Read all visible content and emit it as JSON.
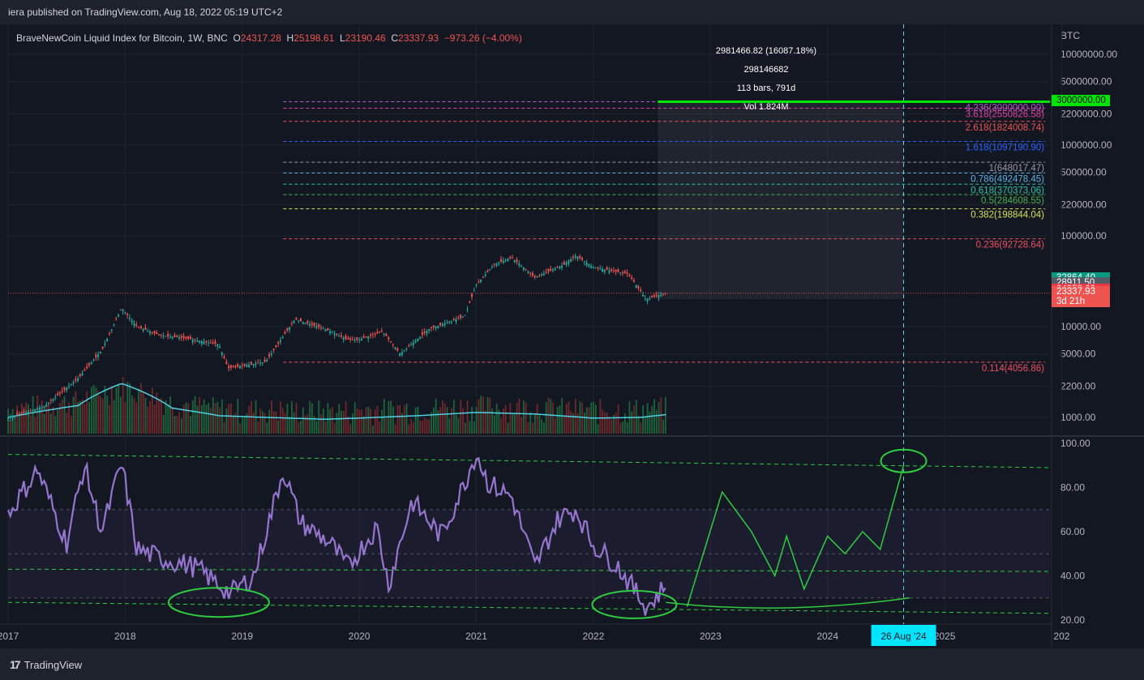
{
  "header": {
    "published": "iera published on TradingView.com, Aug 18, 2022 05:19 UTC+2"
  },
  "symbol": {
    "name": "BraveNewCoin Liquid Index for Bitcoin, 1W, BNC",
    "o_label": "O",
    "o": "24317.28",
    "h_label": "H",
    "h": "25198.61",
    "l_label": "L",
    "l": "23190.46",
    "c_label": "C",
    "c": "23337.93",
    "change": "−973.26 (−4.00%)"
  },
  "measure": {
    "line1": "2981466.82 (16087.18%) 298146682",
    "line2": "113 bars, 791d",
    "line3": "Vol 1.824M"
  },
  "axis": {
    "currency": "BTC",
    "price_ticks": [
      {
        "label": "10000000.00",
        "v": 10000000
      },
      {
        "label": "5000000.00",
        "v": 5000000
      },
      {
        "label": "2200000.00",
        "v": 2200000
      },
      {
        "label": "1000000.00",
        "v": 1000000
      },
      {
        "label": "500000.00",
        "v": 500000
      },
      {
        "label": "220000.00",
        "v": 220000
      },
      {
        "label": "100000.00",
        "v": 100000
      },
      {
        "label": "10000.00",
        "v": 10000
      },
      {
        "label": "5000.00",
        "v": 5000
      },
      {
        "label": "2200.00",
        "v": 2200
      },
      {
        "label": "1000.00",
        "v": 1000
      }
    ],
    "osc_ticks": [
      {
        "label": "100.00",
        "v": 100
      },
      {
        "label": "80.00",
        "v": 80
      },
      {
        "label": "60.00",
        "v": 60
      },
      {
        "label": "40.00",
        "v": 40
      },
      {
        "label": "20.00",
        "v": 20
      }
    ],
    "year_ticks": [
      "2017",
      "2018",
      "2019",
      "2020",
      "2021",
      "2022",
      "2023",
      "2024",
      "2025",
      "202"
    ],
    "crosshair_date": "26 Aug '24"
  },
  "price_tags": [
    {
      "label": "3000000.00",
      "v": 3000000,
      "bg": "#00e600",
      "fg": "#000000"
    },
    {
      "label": "32864.40",
      "v": 32864.4,
      "bg": "#089981",
      "fg": "#ffffff"
    },
    {
      "label": "28911.50",
      "v": 28911.5,
      "bg": "#555b66",
      "fg": "#ffffff"
    },
    {
      "label": "24958.60",
      "v": 24958.6,
      "bg": "#f23645",
      "fg": "#ffffff"
    },
    {
      "label": "23337.93",
      "v": 23337.93,
      "sub": "3d 21h",
      "bg": "#ef5350",
      "fg": "#ffffff"
    }
  ],
  "fib_levels": [
    {
      "label": "4.236(3000000.00)",
      "v": 3000000,
      "color": "#b05bd0"
    },
    {
      "label": "3.618(2550826.58)",
      "v": 2550826.58,
      "color": "#e040a0"
    },
    {
      "label": "2.618(1824008.74)",
      "v": 1824008.74,
      "color": "#ef5350"
    },
    {
      "label": "1.618(1097190.90)",
      "v": 1097190.9,
      "color": "#2962ff"
    },
    {
      "label": "1(648017.47)",
      "v": 648017.47,
      "color": "#9598a1"
    },
    {
      "label": "0.786(492478.45)",
      "v": 492478.45,
      "color": "#5ab0e0"
    },
    {
      "label": "0.618(370373.06)",
      "v": 370373.06,
      "color": "#26c6a0"
    },
    {
      "label": "0.5(284608.55)",
      "v": 284608.55,
      "color": "#4caf50"
    },
    {
      "label": "0.382(198844.04)",
      "v": 198844.04,
      "color": "#d4e157"
    },
    {
      "label": "0.236(92728.64)",
      "v": 92728.64,
      "color": "#f05060"
    },
    {
      "label": "0.114(4056.86)",
      "v": 4056.86,
      "color": "#f05060"
    }
  ],
  "chart_data": {
    "type": "line",
    "title": "BraveNewCoin Liquid Index for Bitcoin, 1W, BNC",
    "y_scale": "log",
    "price_series": {
      "name": "BTC weekly close (approx)",
      "x": [
        2017.0,
        2017.3,
        2017.6,
        2017.8,
        2017.97,
        2018.1,
        2018.3,
        2018.5,
        2018.8,
        2018.88,
        2019.0,
        2019.2,
        2019.45,
        2019.7,
        2019.9,
        2020.0,
        2020.2,
        2020.35,
        2020.6,
        2020.9,
        2021.0,
        2021.15,
        2021.3,
        2021.5,
        2021.75,
        2021.85,
        2022.0,
        2022.3,
        2022.45,
        2022.62
      ],
      "y": [
        1000,
        1300,
        2700,
        5500,
        16000,
        10000,
        8000,
        7500,
        6400,
        3500,
        3700,
        4100,
        12000,
        9500,
        7200,
        7200,
        8800,
        5000,
        9500,
        13000,
        29000,
        48000,
        58000,
        35000,
        48000,
        61000,
        45000,
        38000,
        20000,
        23337.93
      ]
    },
    "volume_ma": {
      "name": "Volume MA",
      "x": [
        2017.0,
        2017.6,
        2017.97,
        2018.4,
        2018.8,
        2019.2,
        2019.7,
        2020.0,
        2020.5,
        2021.0,
        2021.5,
        2022.0,
        2022.4,
        2022.62
      ],
      "y": [
        1000,
        1400,
        2600,
        1300,
        1050,
        1000,
        950,
        980,
        1050,
        1150,
        1100,
        980,
        1000,
        1080
      ]
    },
    "oscillator": {
      "name": "RSI",
      "x": [
        2017.0,
        2017.25,
        2017.5,
        2017.65,
        2017.8,
        2017.97,
        2018.1,
        2018.3,
        2018.6,
        2018.9,
        2019.1,
        2019.35,
        2019.5,
        2019.75,
        2019.9,
        2020.15,
        2020.25,
        2020.45,
        2020.7,
        2020.9,
        2021.0,
        2021.1,
        2021.3,
        2021.5,
        2021.7,
        2021.85,
        2022.0,
        2022.2,
        2022.45,
        2022.5,
        2022.62
      ],
      "y": [
        68,
        88,
        55,
        90,
        60,
        91,
        52,
        48,
        44,
        32,
        40,
        88,
        64,
        55,
        44,
        62,
        36,
        74,
        58,
        82,
        96,
        82,
        76,
        44,
        66,
        70,
        54,
        45,
        26,
        28,
        36
      ],
      "ylim": [
        20,
        100
      ]
    },
    "projection": {
      "name": "Projected RSI path (hand drawn)",
      "x": [
        2022.8,
        2023.1,
        2023.35,
        2023.55,
        2023.65,
        2023.8,
        2024.0,
        2024.15,
        2024.3,
        2024.45,
        2024.65
      ],
      "y": [
        26,
        78,
        60,
        40,
        58,
        34,
        58,
        50,
        60,
        52,
        90
      ]
    },
    "ylim_price": [
      1000,
      10000000
    ],
    "xlim": [
      2017.0,
      2025.9
    ]
  }
}
